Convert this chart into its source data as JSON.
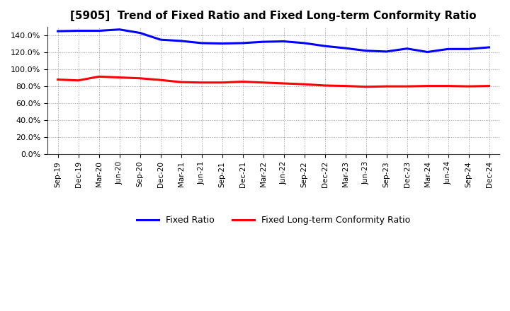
{
  "title": "[5905]  Trend of Fixed Ratio and Fixed Long-term Conformity Ratio",
  "x_labels": [
    "Sep-19",
    "Dec-19",
    "Mar-20",
    "Jun-20",
    "Sep-20",
    "Dec-20",
    "Mar-21",
    "Jun-21",
    "Sep-21",
    "Dec-21",
    "Mar-22",
    "Jun-22",
    "Sep-22",
    "Dec-22",
    "Mar-23",
    "Jun-23",
    "Sep-23",
    "Dec-23",
    "Mar-24",
    "Jun-24",
    "Sep-24",
    "Dec-24"
  ],
  "fixed_ratio": [
    145.0,
    145.5,
    145.5,
    147.0,
    143.0,
    135.0,
    133.5,
    131.0,
    130.5,
    131.0,
    132.5,
    133.0,
    131.0,
    127.5,
    125.0,
    122.0,
    121.0,
    124.5,
    120.5,
    124.0,
    124.0,
    126.0
  ],
  "fixed_long_term": [
    88.0,
    87.0,
    91.5,
    90.5,
    89.5,
    87.5,
    85.0,
    84.5,
    84.5,
    85.5,
    84.5,
    83.5,
    82.5,
    81.0,
    80.5,
    79.5,
    80.0,
    80.0,
    80.5,
    80.5,
    80.0,
    80.5
  ],
  "ylim": [
    0,
    150
  ],
  "yticks": [
    0,
    20,
    40,
    60,
    80,
    100,
    120,
    140
  ],
  "fixed_ratio_color": "#0000FF",
  "fixed_long_term_color": "#FF0000",
  "grid_color": "#999999",
  "bg_color": "#FFFFFF",
  "line_width": 2.2,
  "legend_fixed_ratio": "Fixed Ratio",
  "legend_fixed_long_term": "Fixed Long-term Conformity Ratio",
  "title_fontsize": 11
}
